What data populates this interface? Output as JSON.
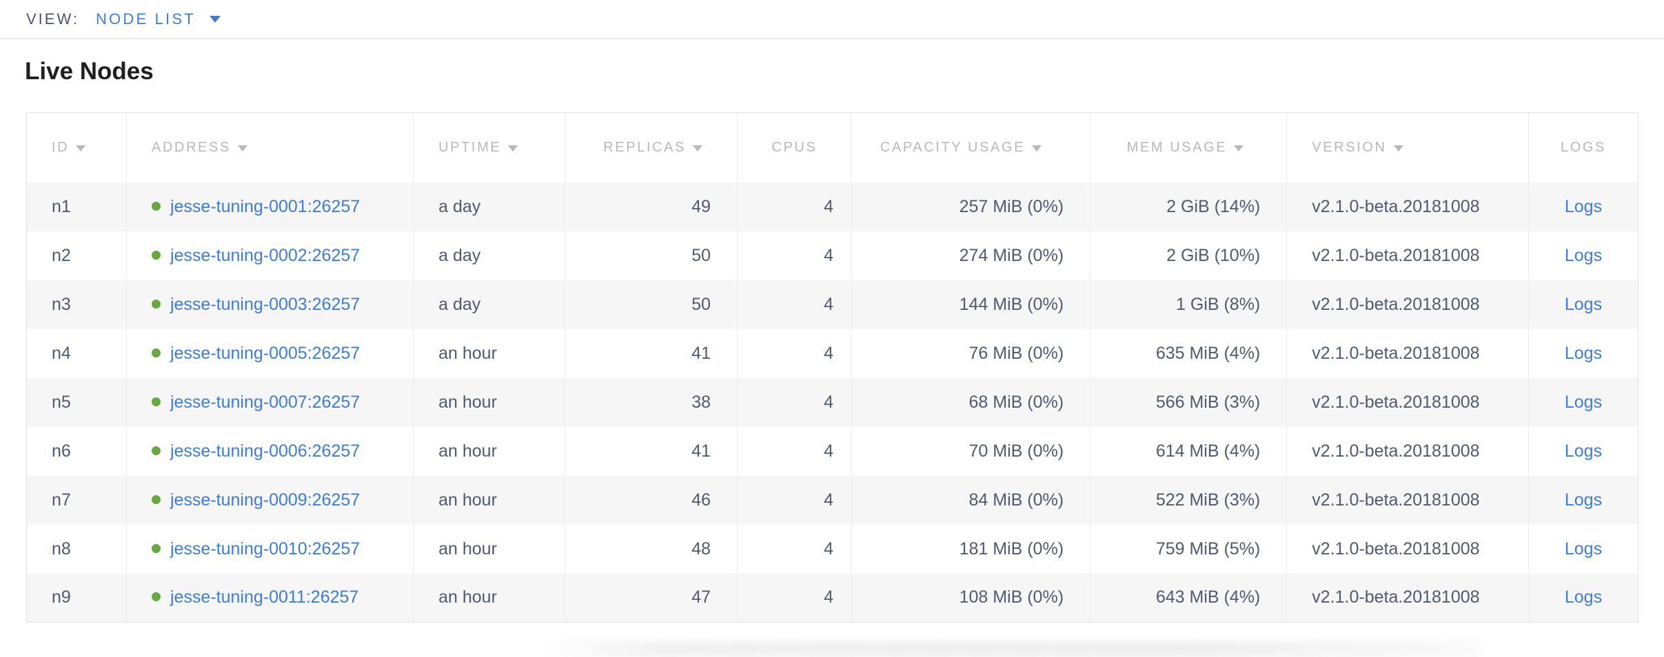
{
  "view_bar": {
    "label": "VIEW:",
    "selected": "NODE LIST"
  },
  "page": {
    "title": "Live Nodes"
  },
  "colors": {
    "accent_blue": "#3d7be0",
    "healthy_dot_green": "#67a842",
    "header_gray": "#b6b8bd",
    "body_text": "#4e5a6e"
  },
  "table": {
    "columns": [
      {
        "key": "id",
        "label": "ID",
        "sortable": true
      },
      {
        "key": "address",
        "label": "ADDRESS",
        "sortable": true
      },
      {
        "key": "uptime",
        "label": "UPTIME",
        "sortable": true
      },
      {
        "key": "replicas",
        "label": "REPLICAS",
        "sortable": true
      },
      {
        "key": "cpus",
        "label": "CPUS",
        "sortable": false
      },
      {
        "key": "capacity",
        "label": "CAPACITY USAGE",
        "sortable": true
      },
      {
        "key": "mem",
        "label": "MEM USAGE",
        "sortable": true
      },
      {
        "key": "version",
        "label": "VERSION",
        "sortable": true
      },
      {
        "key": "logs",
        "label": "LOGS",
        "sortable": false
      }
    ],
    "rows": [
      {
        "id": "n1",
        "status": "healthy",
        "address": "jesse-tuning-0001:26257",
        "uptime": "a day",
        "replicas": "49",
        "cpus": "4",
        "capacity": "257 MiB (0%)",
        "mem": "2 GiB (14%)",
        "version": "v2.1.0-beta.20181008",
        "logs": "Logs"
      },
      {
        "id": "n2",
        "status": "healthy",
        "address": "jesse-tuning-0002:26257",
        "uptime": "a day",
        "replicas": "50",
        "cpus": "4",
        "capacity": "274 MiB (0%)",
        "mem": "2 GiB (10%)",
        "version": "v2.1.0-beta.20181008",
        "logs": "Logs"
      },
      {
        "id": "n3",
        "status": "healthy",
        "address": "jesse-tuning-0003:26257",
        "uptime": "a day",
        "replicas": "50",
        "cpus": "4",
        "capacity": "144 MiB (0%)",
        "mem": "1 GiB (8%)",
        "version": "v2.1.0-beta.20181008",
        "logs": "Logs"
      },
      {
        "id": "n4",
        "status": "healthy",
        "address": "jesse-tuning-0005:26257",
        "uptime": "an hour",
        "replicas": "41",
        "cpus": "4",
        "capacity": "76 MiB (0%)",
        "mem": "635 MiB (4%)",
        "version": "v2.1.0-beta.20181008",
        "logs": "Logs"
      },
      {
        "id": "n5",
        "status": "healthy",
        "address": "jesse-tuning-0007:26257",
        "uptime": "an hour",
        "replicas": "38",
        "cpus": "4",
        "capacity": "68 MiB (0%)",
        "mem": "566 MiB (3%)",
        "version": "v2.1.0-beta.20181008",
        "logs": "Logs"
      },
      {
        "id": "n6",
        "status": "healthy",
        "address": "jesse-tuning-0006:26257",
        "uptime": "an hour",
        "replicas": "41",
        "cpus": "4",
        "capacity": "70 MiB (0%)",
        "mem": "614 MiB (4%)",
        "version": "v2.1.0-beta.20181008",
        "logs": "Logs"
      },
      {
        "id": "n7",
        "status": "healthy",
        "address": "jesse-tuning-0009:26257",
        "uptime": "an hour",
        "replicas": "46",
        "cpus": "4",
        "capacity": "84 MiB (0%)",
        "mem": "522 MiB (3%)",
        "version": "v2.1.0-beta.20181008",
        "logs": "Logs"
      },
      {
        "id": "n8",
        "status": "healthy",
        "address": "jesse-tuning-0010:26257",
        "uptime": "an hour",
        "replicas": "48",
        "cpus": "4",
        "capacity": "181 MiB (0%)",
        "mem": "759 MiB (5%)",
        "version": "v2.1.0-beta.20181008",
        "logs": "Logs"
      },
      {
        "id": "n9",
        "status": "healthy",
        "address": "jesse-tuning-0011:26257",
        "uptime": "an hour",
        "replicas": "47",
        "cpus": "4",
        "capacity": "108 MiB (0%)",
        "mem": "643 MiB (4%)",
        "version": "v2.1.0-beta.20181008",
        "logs": "Logs"
      }
    ]
  }
}
